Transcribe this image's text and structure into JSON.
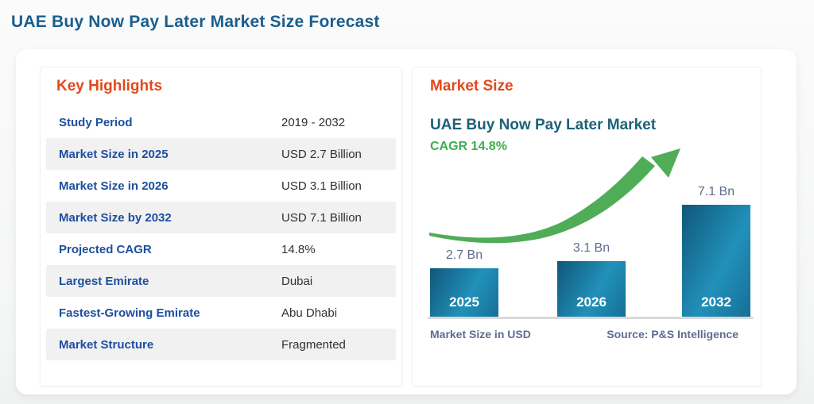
{
  "page": {
    "title": "UAE Buy Now Pay Later Market Size Forecast"
  },
  "highlights": {
    "heading": "Key Highlights",
    "rows": [
      {
        "label": "Study Period",
        "value": "2019 - 2032"
      },
      {
        "label": "Market Size in 2025",
        "value": "USD 2.7 Billion"
      },
      {
        "label": "Market Size in 2026",
        "value": "USD 3.1 Billion"
      },
      {
        "label": "Market Size by 2032",
        "value": "USD 7.1 Billion"
      },
      {
        "label": "Projected CAGR",
        "value": "14.8%"
      },
      {
        "label": "Largest Emirate",
        "value": "Dubai"
      },
      {
        "label": "Fastest-Growing Emirate",
        "value": "Abu Dhabi"
      },
      {
        "label": "Market Structure",
        "value": "Fragmented"
      }
    ]
  },
  "market_size": {
    "heading": "Market Size",
    "chart_title": "UAE Buy Now Pay Later Market",
    "cagr_label": "CAGR 14.8%",
    "footer_left": "Market Size in USD",
    "footer_right": "Source: P&S Intelligence"
  },
  "chart_data": {
    "type": "bar",
    "title": "UAE Buy Now Pay Later Market",
    "subtitle": "CAGR 14.8%",
    "categories": [
      "2025",
      "2026",
      "2032"
    ],
    "values": [
      2.7,
      3.1,
      7.1
    ],
    "value_labels": [
      "2.7 Bn",
      "3.1 Bn",
      "7.1 Bn"
    ],
    "unit": "USD Billion",
    "xlabel": "Market Size in USD",
    "ylabel": "",
    "ylim": [
      0,
      7.3
    ],
    "grid": false,
    "legend": false,
    "annotations": [
      "green upward trend arrow",
      "Source: P&S Intelligence"
    ],
    "bar_gradient": [
      "#10577a",
      "#2191ba"
    ],
    "trend_arrow_color": "#4fad58"
  },
  "colors": {
    "page_title": "#1a5e8d",
    "section_heading": "#e2491b",
    "row_label": "#1d4fa0",
    "row_value": "#303030",
    "row_stripe": "#f1f1f1",
    "chart_title": "#1c6179",
    "cagr_green": "#3fae53",
    "muted_slate": "#5e6c8e",
    "axis_line": "#d9d9d9"
  }
}
